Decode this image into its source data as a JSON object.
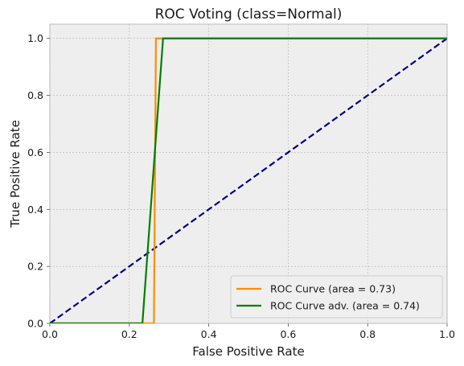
{
  "chart_data": {
    "type": "line",
    "title": "ROC Voting (class=Normal)",
    "xlabel": "False Positive Rate",
    "ylabel": "True Positive Rate",
    "xlim": [
      0.0,
      1.0
    ],
    "ylim": [
      0.0,
      1.05
    ],
    "xticks": [
      "0.0",
      "0.2",
      "0.4",
      "0.6",
      "0.8",
      "1.0"
    ],
    "yticks": [
      "0.0",
      "0.2",
      "0.4",
      "0.6",
      "0.8",
      "1.0"
    ],
    "grid": true,
    "legend_position": "lower right",
    "series": [
      {
        "name": "ROC Curve (area = 0.73)",
        "color": "#ff8c00",
        "style": "solid",
        "x": [
          0.0,
          0.262,
          0.267,
          1.0
        ],
        "y": [
          0.0,
          0.0,
          1.0,
          1.0
        ]
      },
      {
        "name": "ROC Curve adv. (area = 0.74)",
        "color": "#008000",
        "style": "solid",
        "x": [
          0.0,
          0.233,
          0.285,
          1.0
        ],
        "y": [
          0.0,
          0.0,
          1.0,
          1.0
        ]
      },
      {
        "name": "",
        "color": "#000080",
        "style": "dashed",
        "x": [
          0.0,
          1.0
        ],
        "y": [
          0.0,
          1.0
        ]
      }
    ]
  }
}
